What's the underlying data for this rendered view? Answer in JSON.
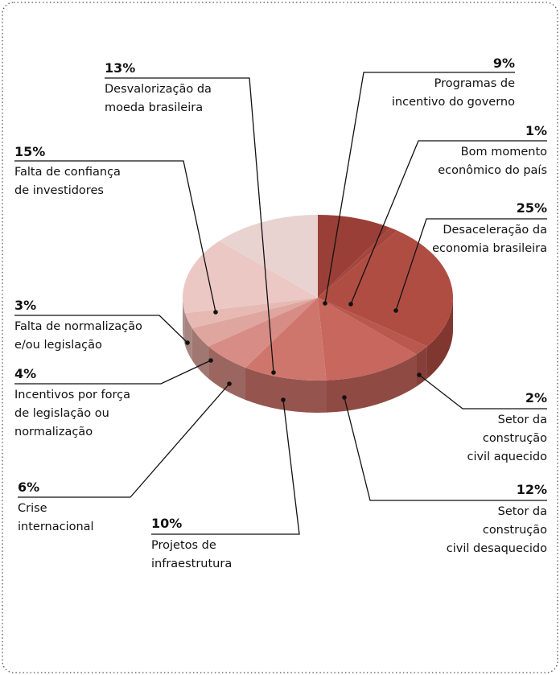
{
  "chart_data": {
    "type": "pie",
    "categories": [
      "Programas de\nincentivo do governo",
      "Bom momento\neconômico do país",
      "Desaceleração da\neconomia brasileira",
      "Setor da\nconstrução\ncivil aquecido",
      "Setor da\nconstrução\ncivil desaquecido",
      "Projetos de\ninfraestrutura",
      "Crise\ninternacional",
      "Incentivos por força\nde legislação ou\nnormalização",
      "Falta de normalização\ne/ou legislação",
      "Falta de confiança\nde investidores",
      "Desvalorização da\nmoeda brasileira"
    ],
    "values": [
      9,
      1,
      25,
      2,
      12,
      10,
      6,
      4,
      3,
      15,
      13
    ],
    "value_labels": [
      "9%",
      "1%",
      "25%",
      "2%",
      "12%",
      "10%",
      "6%",
      "4%",
      "3%",
      "15%",
      "13%"
    ],
    "colors": [
      "#9a3f37",
      "#a4463d",
      "#b04d43",
      "#b9584e",
      "#c7675d",
      "#cf766c",
      "#d78d86",
      "#dfa59f",
      "#e6b9b3",
      "#ebc8c4",
      "#e9d3d0"
    ]
  }
}
